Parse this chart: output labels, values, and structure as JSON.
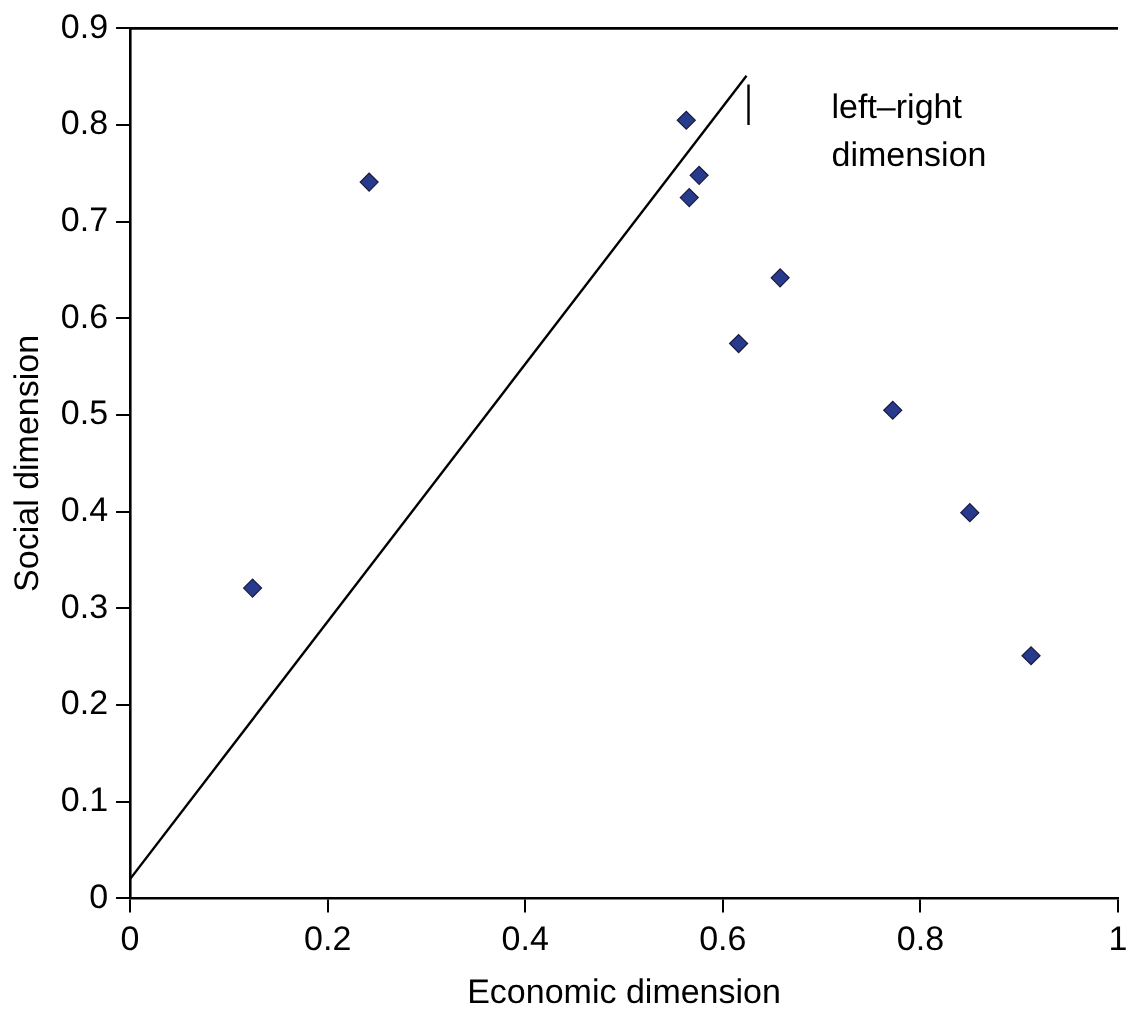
{
  "chart_data": {
    "type": "scatter",
    "xlabel": "Economic dimension",
    "ylabel": "Social dimension",
    "xlim": [
      0,
      1
    ],
    "xticks": [
      0,
      0.2,
      0.4,
      0.6,
      0.8,
      1
    ],
    "ylim": [
      0,
      0.9
    ],
    "yticks": [
      0,
      0.1,
      0.2,
      0.3,
      0.4,
      0.5,
      0.6,
      0.7,
      0.8,
      0.9
    ],
    "grid": false,
    "legend": false,
    "series": [
      {
        "marker": "diamond",
        "color": "#283a8c",
        "x": [
          0.124,
          0.242,
          0.563,
          0.566,
          0.576,
          0.616,
          0.658,
          0.772,
          0.85,
          0.912
        ],
        "values": [
          0.321,
          0.741,
          0.805,
          0.725,
          0.748,
          0.574,
          0.642,
          0.505,
          0.399,
          0.251
        ]
      },
      {
        "type": "line",
        "marker": "none",
        "color": "#000000",
        "x": [
          0,
          0.624
        ],
        "values": [
          0.02,
          0.851
        ]
      },
      {
        "type": "line",
        "marker": "none",
        "color": "#000000",
        "x": [
          0.626,
          0.626
        ],
        "values": [
          0.8,
          0.842
        ]
      }
    ],
    "annotations": [
      "left–right dimension"
    ]
  }
}
